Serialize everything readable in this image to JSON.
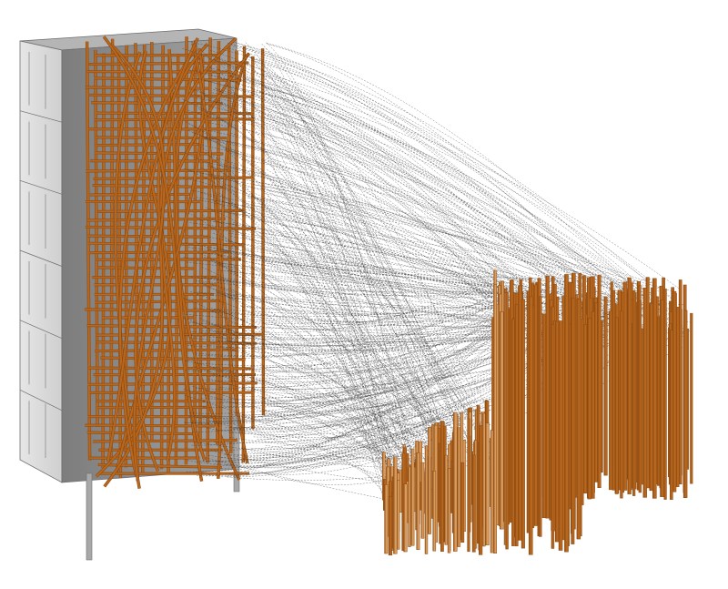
{
  "scene": {
    "description_text": "",
    "colors": {
      "background": "#ffffff",
      "building_front": "#d9d9d9",
      "building_side": "#8f8f8f",
      "building_top": "#b5b5b5",
      "building_edge": "#6e6e6e",
      "timber_dark": "#8a4a12",
      "timber_mid": "#b8671f",
      "timber_light": "#d99b5c",
      "dashed_line": "#333333"
    },
    "building": {
      "floors": 6,
      "window_columns": 1,
      "support_posts": 2
    },
    "facade_frame": {
      "vertical_members": 22,
      "horizontal_members": 52,
      "curved_members": 14
    },
    "stockpile": {
      "stick_count": 260
    },
    "correspondence_lines": {
      "count": 420,
      "style": "dashed"
    }
  }
}
